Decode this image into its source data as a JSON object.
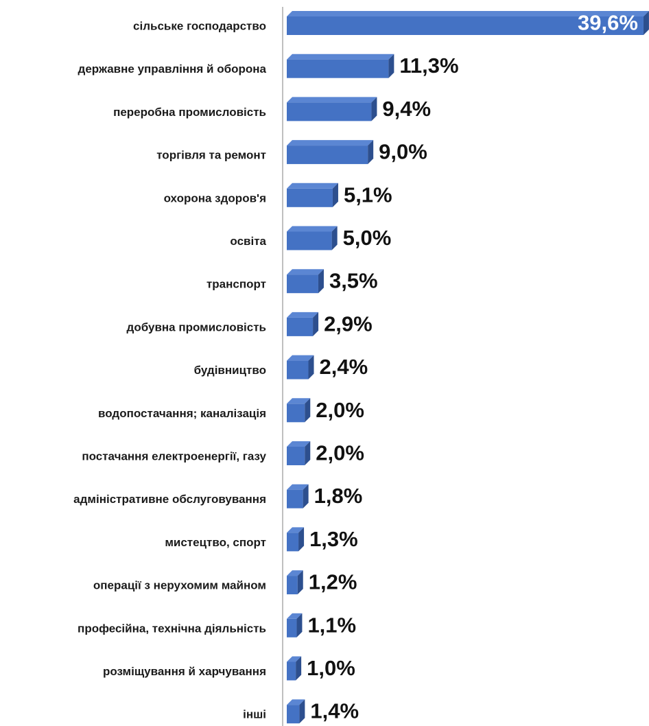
{
  "chart_data": {
    "type": "bar",
    "orientation": "horizontal",
    "style": "3d",
    "categories": [
      "сільське господарство",
      "державне управління й оборона",
      "переробна промисловість",
      "торгівля та ремонт",
      "охорона здоров'я",
      "освіта",
      "транспорт ",
      "добувна промисловість",
      "будівництво",
      "водопостачання; каналізація",
      "постачання електроенергії, газу",
      "адміністративне обслуговування",
      "мистецтво, спорт",
      "операції з нерухомим майном",
      "професійна, технічна діяльність",
      "розміщування й харчування",
      "інші"
    ],
    "values": [
      39.6,
      11.3,
      9.4,
      9.0,
      5.1,
      5.0,
      3.5,
      2.9,
      2.4,
      2.0,
      2.0,
      1.8,
      1.3,
      1.2,
      1.1,
      1.0,
      1.4
    ],
    "value_labels": [
      "39,6%",
      "11,3%",
      "9,4%",
      "9,0%",
      "5,1%",
      "5,0%",
      "3,5%",
      "2,9%",
      "2,4%",
      "2,0%",
      "2,0%",
      "1,8%",
      "1,3%",
      "1,2%",
      "1,1%",
      "1,0%",
      "1,4%"
    ],
    "value_unit": "%",
    "xlim": [
      0,
      40
    ],
    "grid": false,
    "legend": "none",
    "colors": {
      "bar_front": "#4472C4",
      "bar_top": "#5B86D3",
      "bar_side": "#2D4F8E",
      "axis_line": "#BFBFBF"
    }
  }
}
